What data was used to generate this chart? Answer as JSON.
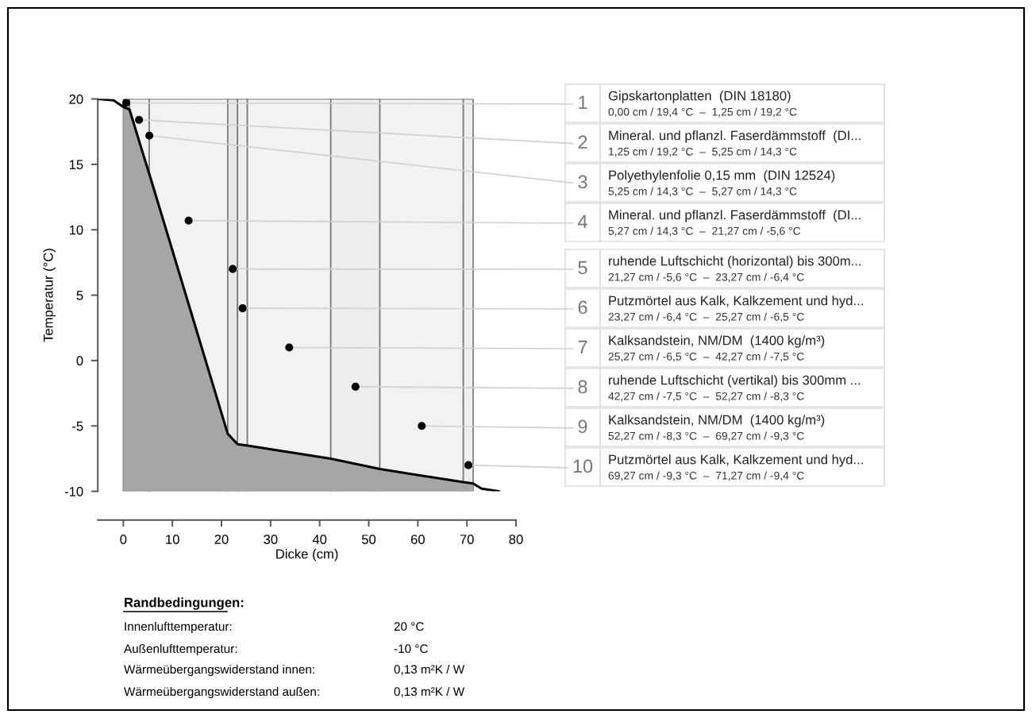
{
  "chart_data": {
    "type": "line",
    "xlabel": "Dicke (cm)",
    "ylabel": "Temperatur (°C)",
    "xlim": [
      -5.2,
      80
    ],
    "ylim": [
      -10,
      20
    ],
    "xticks": [
      0,
      10,
      20,
      30,
      40,
      50,
      60,
      70,
      80
    ],
    "yticks": [
      -10,
      -5,
      0,
      5,
      10,
      15,
      20
    ],
    "grid": false,
    "legend": false,
    "marker": "none",
    "line_style": "solid",
    "series": [
      {
        "type": "area",
        "color": "#a6a6a6",
        "x": [
          0,
          0,
          1.25,
          5.25,
          5.27,
          21.27,
          23.27,
          25.27,
          42.27,
          52.27,
          69.27,
          71.27,
          71.27
        ],
        "values": [
          -10,
          19.4,
          19.2,
          14.3,
          14.3,
          -5.6,
          -6.4,
          -6.5,
          -7.5,
          -8.3,
          -9.3,
          -9.4,
          -10
        ]
      },
      {
        "color": "#000000",
        "x": [
          -5.2,
          -2,
          0,
          1.25,
          5.25,
          5.27,
          21.27,
          23.27,
          25.27,
          42.27,
          52.27,
          69.27,
          71.27,
          73,
          76.5
        ],
        "values": [
          20,
          19.9,
          19.4,
          19.2,
          14.3,
          14.3,
          -5.6,
          -6.4,
          -6.5,
          -7.5,
          -8.3,
          -9.3,
          -9.4,
          -9.8,
          -10
        ]
      }
    ],
    "bands": [
      {
        "axis": "x",
        "from": 0,
        "to": 1.25,
        "color": "#e8e8e8"
      },
      {
        "axis": "x",
        "from": 1.25,
        "to": 5.25,
        "color": "#f2f2f2"
      },
      {
        "axis": "x",
        "from": 5.25,
        "to": 5.27,
        "color": "#e8e8e8"
      },
      {
        "axis": "x",
        "from": 5.27,
        "to": 21.27,
        "color": "#f2f2f2"
      },
      {
        "axis": "x",
        "from": 21.27,
        "to": 23.27,
        "color": "#e8e8e8"
      },
      {
        "axis": "x",
        "from": 23.27,
        "to": 25.27,
        "color": "#eeeeee"
      },
      {
        "axis": "x",
        "from": 25.27,
        "to": 42.27,
        "color": "#f2f2f2"
      },
      {
        "axis": "x",
        "from": 42.27,
        "to": 52.27,
        "color": "#eeeeee"
      },
      {
        "axis": "x",
        "from": 52.27,
        "to": 69.27,
        "color": "#f2f2f2"
      },
      {
        "axis": "x",
        "from": 69.27,
        "to": 71.27,
        "color": "#eeeeee"
      }
    ],
    "annotations": [
      {
        "text": "1",
        "x": 0.6,
        "y": 19.7
      },
      {
        "text": "2",
        "x": 3.2,
        "y": 18.4
      },
      {
        "text": "3",
        "x": 5.3,
        "y": 17.2
      },
      {
        "text": "4",
        "x": 13.3,
        "y": 10.7
      },
      {
        "text": "5",
        "x": 22.3,
        "y": 7.0
      },
      {
        "text": "6",
        "x": 24.3,
        "y": 4.0
      },
      {
        "text": "7",
        "x": 33.8,
        "y": 1.0
      },
      {
        "text": "8",
        "x": 47.3,
        "y": -2.0
      },
      {
        "text": "9",
        "x": 60.8,
        "y": -5.0
      },
      {
        "text": "10",
        "x": 70.3,
        "y": -8.0
      },
      "Gipskartonplatten  (DIN 18180)\n0,00 cm / 19,4 °C  –  1,25 cm / 19,2 °C",
      "Mineral. und pflanzl. Faserdämmstoff  (DI...\n1,25 cm / 19,2 °C  –  5,25 cm / 14,3 °C",
      "Polyethylenfolie 0,15 mm  (DIN 12524)\n5,25 cm / 14,3 °C  –  5,27 cm / 14,3 °C",
      "Mineral. und pflanzl. Faserdämmstoff  (DI...\n5,27 cm / 14,3 °C  –  21,27 cm / -5,6 °C",
      "ruhende Luftschicht (horizontal) bis 300m...\n21,27 cm / -5,6 °C  –  23,27 cm / -6,4 °C",
      "Putzmörtel aus Kalk, Kalkzement und hyd...\n23,27 cm / -6,4 °C  –  25,27 cm / -6,5 °C",
      "Kalksandstein, NM/DM  (1400 kg/m³)\n25,27 cm / -6,5 °C  –  42,27 cm / -7,5 °C",
      "ruhende Luftschicht (vertikal) bis 300mm ...\n42,27 cm / -7,5 °C  –  52,27 cm / -8,3 °C",
      "Kalksandstein, NM/DM  (1400 kg/m³)\n52,27 cm / -8,3 °C  –  69,27 cm / -9,3 °C",
      "Putzmörtel aus Kalk, Kalkzement und hyd...\n69,27 cm / -9,3 °C  –  71,27 cm / -9,4 °C",
      "Randbedingungen:",
      "Innenlufttemperatur:\t20 °C",
      "Außenlufttemperatur:\t-10 °C",
      "Wärmeübergangswiderstand innen:\t0,13 m²K / W",
      "Wärmeübergangswiderstand außen:\t0,13 m²K / W"
    ]
  }
}
